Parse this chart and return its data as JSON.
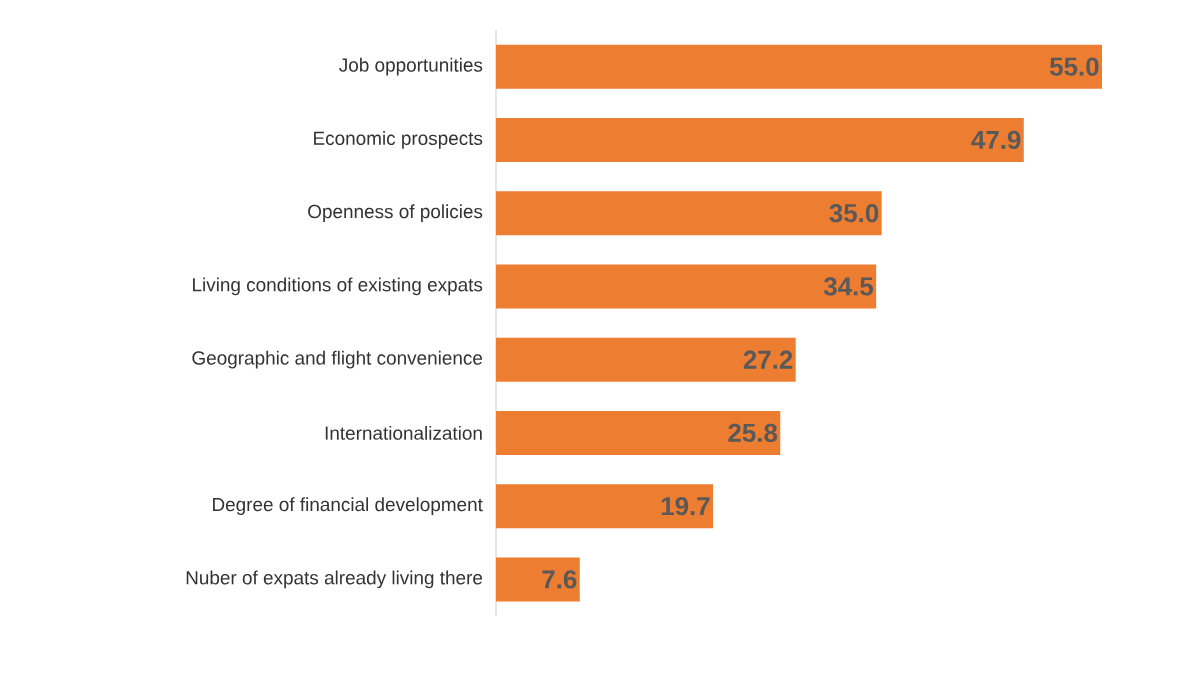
{
  "chart_data": {
    "type": "bar",
    "orientation": "horizontal",
    "categories": [
      "Job opportunities",
      "Economic prospects",
      "Openness of policies",
      "Living conditions of existing expats",
      "Geographic and flight convenience",
      "Internationalization",
      "Degree of financial development",
      "Nuber of expats already living there"
    ],
    "values": [
      55.0,
      47.9,
      35.0,
      34.5,
      27.2,
      25.8,
      19.7,
      7.6
    ],
    "value_labels": [
      "55.0",
      "47.9",
      "35.0",
      "34.5",
      "27.2",
      "25.8",
      "19.7",
      "7.6"
    ],
    "color": "#ed7d31"
  }
}
